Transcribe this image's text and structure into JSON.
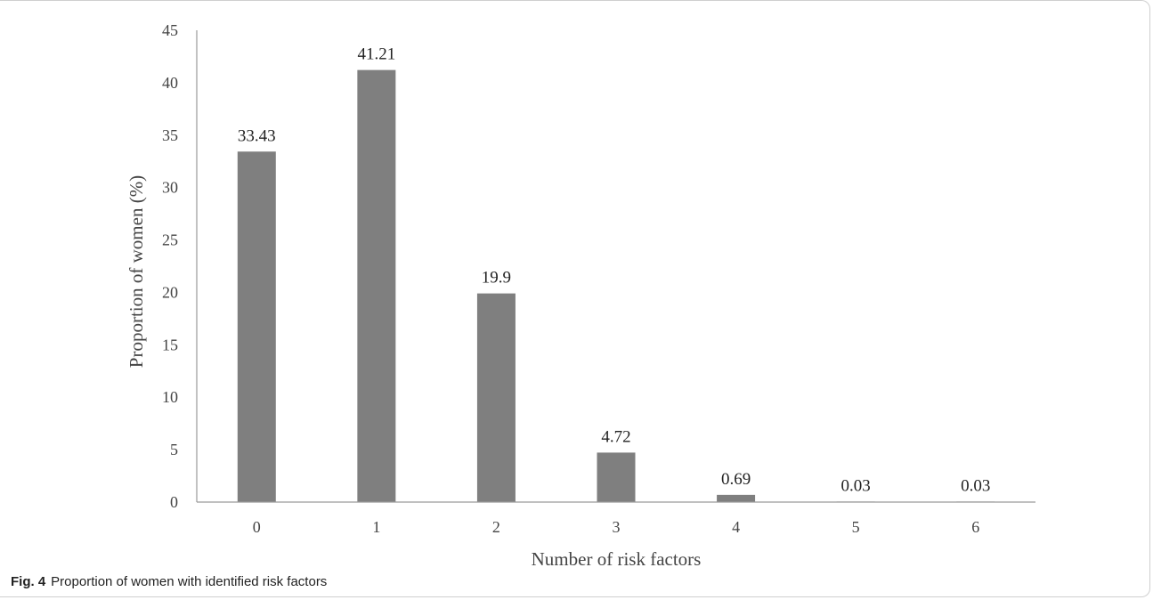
{
  "figure": {
    "label": "Fig. 4",
    "caption": "Proportion of women with identified risk factors"
  },
  "chart_data": {
    "type": "bar",
    "categories": [
      "0",
      "1",
      "2",
      "3",
      "4",
      "5",
      "6"
    ],
    "values": [
      33.43,
      41.21,
      19.9,
      4.72,
      0.69,
      0.03,
      0.03
    ],
    "data_labels": [
      "33.43",
      "41.21",
      "19.9",
      "4.72",
      "0.69",
      "0.03",
      "0.03"
    ],
    "xlabel": "Number of risk factors",
    "ylabel": "Proportion of women (%)",
    "ylim": [
      0,
      45
    ],
    "yticks": [
      0,
      5,
      10,
      15,
      20,
      25,
      30,
      35,
      40,
      45
    ],
    "bar_color": "#7f7f7f",
    "grid": false,
    "legend": "none"
  }
}
